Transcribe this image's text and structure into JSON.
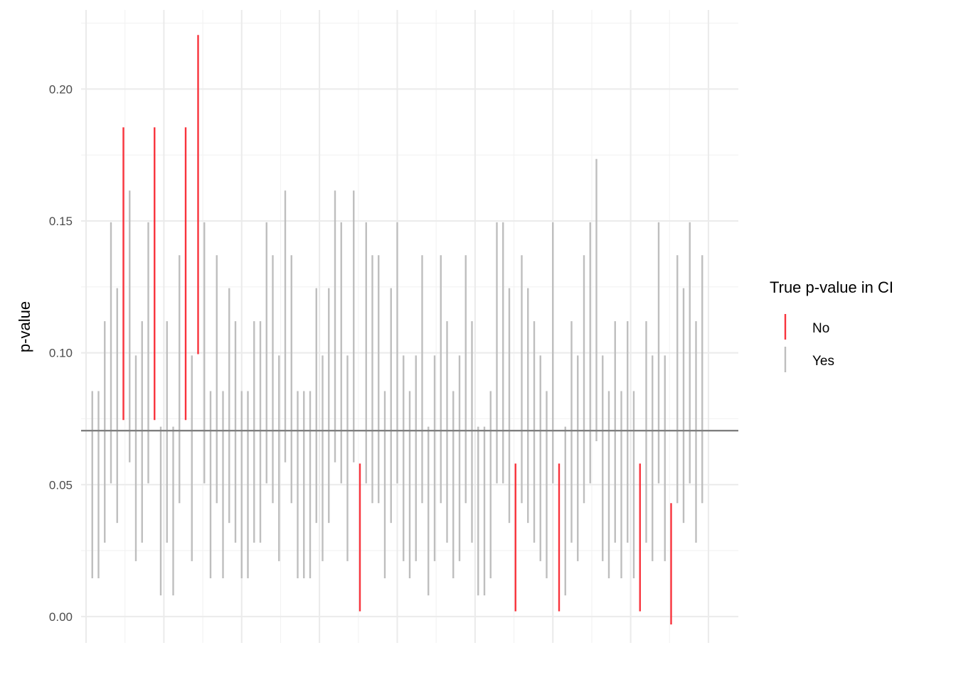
{
  "chart_data": {
    "type": "errorbar",
    "title": "",
    "xlabel": "",
    "ylabel": "p-value",
    "ylim": [
      -0.01,
      0.23
    ],
    "y_ticks": [
      0.0,
      0.05,
      0.1,
      0.15,
      0.2
    ],
    "y_tick_labels": [
      "0.00",
      "0.05",
      "0.10",
      "0.15",
      "0.20"
    ],
    "x_range": [
      -0.8,
      104.8
    ],
    "x_major_gridlines": [
      0,
      12.5,
      25,
      37.5,
      50,
      62.5,
      75,
      87.5,
      100
    ],
    "grid": true,
    "reference_line": 0.0705,
    "legend": {
      "title": "True p-value in CI",
      "placement": "right",
      "entries": [
        {
          "label": "No",
          "color": "#f8333c"
        },
        {
          "label": "Yes",
          "color": "#bebebe"
        }
      ]
    },
    "intervals": [
      [
        1,
        0.0145,
        0.0855,
        "Yes"
      ],
      [
        2,
        0.0145,
        0.0855,
        "Yes"
      ],
      [
        3,
        0.028,
        0.112,
        "Yes"
      ],
      [
        4,
        0.0505,
        0.1495,
        "Yes"
      ],
      [
        5,
        0.0355,
        0.1245,
        "Yes"
      ],
      [
        6,
        0.0745,
        0.1855,
        "No"
      ],
      [
        7,
        0.0585,
        0.1615,
        "Yes"
      ],
      [
        8,
        0.021,
        0.099,
        "Yes"
      ],
      [
        9,
        0.028,
        0.112,
        "Yes"
      ],
      [
        10,
        0.0505,
        0.1495,
        "Yes"
      ],
      [
        11,
        0.0745,
        0.1855,
        "No"
      ],
      [
        12,
        0.008,
        0.072,
        "Yes"
      ],
      [
        13,
        0.028,
        0.112,
        "Yes"
      ],
      [
        14,
        0.008,
        0.072,
        "Yes"
      ],
      [
        15,
        0.043,
        0.137,
        "Yes"
      ],
      [
        16,
        0.0745,
        0.1855,
        "No"
      ],
      [
        17,
        0.021,
        0.099,
        "Yes"
      ],
      [
        18,
        0.0995,
        0.2205,
        "No"
      ],
      [
        19,
        0.0505,
        0.1495,
        "Yes"
      ],
      [
        20,
        0.0145,
        0.0855,
        "Yes"
      ],
      [
        21,
        0.043,
        0.137,
        "Yes"
      ],
      [
        22,
        0.0145,
        0.0855,
        "Yes"
      ],
      [
        23,
        0.0355,
        0.1245,
        "Yes"
      ],
      [
        24,
        0.028,
        0.112,
        "Yes"
      ],
      [
        25,
        0.0145,
        0.0855,
        "Yes"
      ],
      [
        26,
        0.0145,
        0.0855,
        "Yes"
      ],
      [
        27,
        0.028,
        0.112,
        "Yes"
      ],
      [
        28,
        0.028,
        0.112,
        "Yes"
      ],
      [
        29,
        0.0505,
        0.1495,
        "Yes"
      ],
      [
        30,
        0.043,
        0.137,
        "Yes"
      ],
      [
        31,
        0.021,
        0.099,
        "Yes"
      ],
      [
        32,
        0.0585,
        0.1615,
        "Yes"
      ],
      [
        33,
        0.043,
        0.137,
        "Yes"
      ],
      [
        34,
        0.0145,
        0.0855,
        "Yes"
      ],
      [
        35,
        0.0145,
        0.0855,
        "Yes"
      ],
      [
        36,
        0.0145,
        0.0855,
        "Yes"
      ],
      [
        37,
        0.0355,
        0.1245,
        "Yes"
      ],
      [
        38,
        0.021,
        0.099,
        "Yes"
      ],
      [
        39,
        0.0355,
        0.1245,
        "Yes"
      ],
      [
        40,
        0.0585,
        0.1615,
        "Yes"
      ],
      [
        41,
        0.0505,
        0.1495,
        "Yes"
      ],
      [
        42,
        0.021,
        0.099,
        "Yes"
      ],
      [
        43,
        0.0585,
        0.1615,
        "Yes"
      ],
      [
        44,
        0.002,
        0.058,
        "No"
      ],
      [
        45,
        0.0505,
        0.1495,
        "Yes"
      ],
      [
        46,
        0.043,
        0.137,
        "Yes"
      ],
      [
        47,
        0.043,
        0.137,
        "Yes"
      ],
      [
        48,
        0.0145,
        0.0855,
        "Yes"
      ],
      [
        49,
        0.0355,
        0.1245,
        "Yes"
      ],
      [
        50,
        0.0505,
        0.1495,
        "Yes"
      ],
      [
        51,
        0.021,
        0.099,
        "Yes"
      ],
      [
        52,
        0.0145,
        0.0855,
        "Yes"
      ],
      [
        53,
        0.021,
        0.099,
        "Yes"
      ],
      [
        54,
        0.043,
        0.137,
        "Yes"
      ],
      [
        55,
        0.008,
        0.072,
        "Yes"
      ],
      [
        56,
        0.021,
        0.099,
        "Yes"
      ],
      [
        57,
        0.043,
        0.137,
        "Yes"
      ],
      [
        58,
        0.028,
        0.112,
        "Yes"
      ],
      [
        59,
        0.0145,
        0.0855,
        "Yes"
      ],
      [
        60,
        0.021,
        0.099,
        "Yes"
      ],
      [
        61,
        0.043,
        0.137,
        "Yes"
      ],
      [
        62,
        0.028,
        0.112,
        "Yes"
      ],
      [
        63,
        0.008,
        0.072,
        "Yes"
      ],
      [
        64,
        0.008,
        0.072,
        "Yes"
      ],
      [
        65,
        0.0145,
        0.0855,
        "Yes"
      ],
      [
        66,
        0.0505,
        0.1495,
        "Yes"
      ],
      [
        67,
        0.0505,
        0.1495,
        "Yes"
      ],
      [
        68,
        0.0355,
        0.1245,
        "Yes"
      ],
      [
        69,
        0.002,
        0.058,
        "No"
      ],
      [
        70,
        0.043,
        0.137,
        "Yes"
      ],
      [
        71,
        0.0355,
        0.1245,
        "Yes"
      ],
      [
        72,
        0.028,
        0.112,
        "Yes"
      ],
      [
        73,
        0.021,
        0.099,
        "Yes"
      ],
      [
        74,
        0.0145,
        0.0855,
        "Yes"
      ],
      [
        75,
        0.0505,
        0.1495,
        "Yes"
      ],
      [
        76,
        0.002,
        0.058,
        "No"
      ],
      [
        77,
        0.008,
        0.072,
        "Yes"
      ],
      [
        78,
        0.028,
        0.112,
        "Yes"
      ],
      [
        79,
        0.021,
        0.099,
        "Yes"
      ],
      [
        80,
        0.043,
        0.137,
        "Yes"
      ],
      [
        81,
        0.0505,
        0.1495,
        "Yes"
      ],
      [
        82,
        0.0665,
        0.1735,
        "Yes"
      ],
      [
        83,
        0.021,
        0.099,
        "Yes"
      ],
      [
        84,
        0.0145,
        0.0855,
        "Yes"
      ],
      [
        85,
        0.028,
        0.112,
        "Yes"
      ],
      [
        86,
        0.0145,
        0.0855,
        "Yes"
      ],
      [
        87,
        0.028,
        0.112,
        "Yes"
      ],
      [
        88,
        0.0145,
        0.0855,
        "Yes"
      ],
      [
        89,
        0.002,
        0.058,
        "No"
      ],
      [
        90,
        0.028,
        0.112,
        "Yes"
      ],
      [
        91,
        0.021,
        0.099,
        "Yes"
      ],
      [
        92,
        0.0505,
        0.1495,
        "Yes"
      ],
      [
        93,
        0.021,
        0.099,
        "Yes"
      ],
      [
        94,
        -0.003,
        0.043,
        "No"
      ],
      [
        95,
        0.043,
        0.137,
        "Yes"
      ],
      [
        96,
        0.0355,
        0.1245,
        "Yes"
      ],
      [
        97,
        0.0505,
        0.1495,
        "Yes"
      ],
      [
        98,
        0.028,
        0.112,
        "Yes"
      ],
      [
        99,
        0.043,
        0.137,
        "Yes"
      ]
    ]
  }
}
